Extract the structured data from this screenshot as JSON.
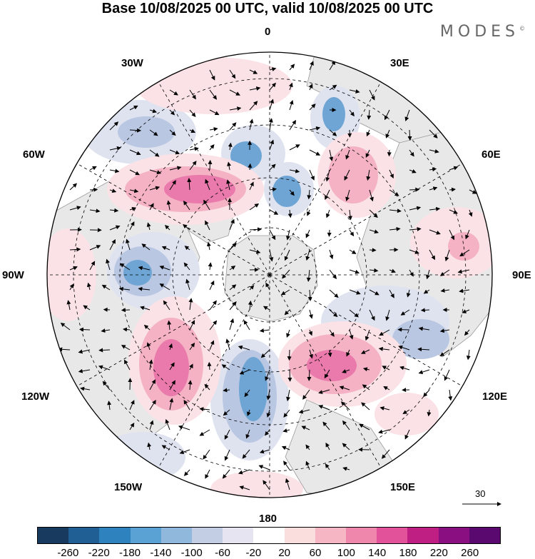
{
  "title": "Base 10/08/2025 00 UTC, valid 10/08/2025 00 UTC",
  "brand": "MODES",
  "brand_mark": "©",
  "meridian_labels": {
    "0": "0",
    "30E": "30E",
    "60E": "60E",
    "90E": "90E",
    "120E": "120E",
    "150E": "150E",
    "180": "180",
    "150W": "150W",
    "120W": "120W",
    "90W": "90W",
    "60W": "60W",
    "30W": "30W"
  },
  "reference_vector": {
    "value": "30"
  },
  "colorbar": {
    "ticks": [
      "-260",
      "-220",
      "-180",
      "-140",
      "-100",
      "-60",
      "-20",
      "20",
      "60",
      "100",
      "140",
      "180",
      "220",
      "260"
    ],
    "colors": [
      "#173a5e",
      "#1f5f93",
      "#2e82bd",
      "#5aa2d3",
      "#8fb8dc",
      "#c3cde4",
      "#e6e4f1",
      "#ffffff",
      "#fadede",
      "#f6b6c4",
      "#ef87ac",
      "#e2529b",
      "#bf1e82",
      "#8a1082",
      "#5a0a6e"
    ]
  },
  "map_colors": {
    "land": "#e8e8e8",
    "neg_light": "#dfe3f0",
    "neg_mid": "#b9c7e2",
    "neg_strong": "#6ea5d4",
    "neg_core": "#3f86bf",
    "pos_light": "#fbe2e6",
    "pos_mid": "#f4b2c4",
    "pos_strong": "#e97aab",
    "pos_core": "#d8459a"
  }
}
